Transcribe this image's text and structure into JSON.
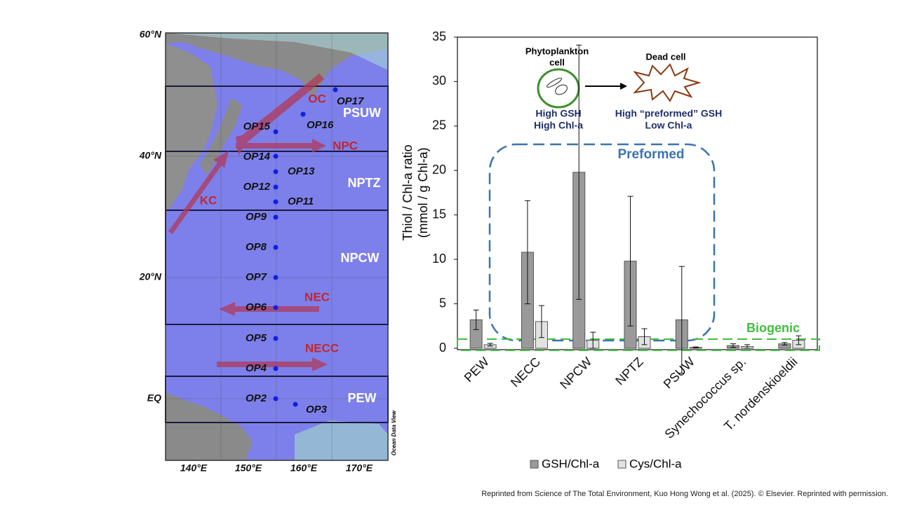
{
  "map": {
    "lat_labels": [
      "60°N",
      "40°N",
      "20°N",
      "EQ"
    ],
    "lon_labels": [
      "140°E",
      "150°E",
      "160°E",
      "170°E"
    ],
    "regions": [
      "PSUW",
      "NPTZ",
      "NPCW",
      "PEW"
    ],
    "currents": [
      "OC",
      "NPC",
      "KC",
      "NEC",
      "NECC"
    ],
    "stations": [
      "OP17",
      "OP16",
      "OP15",
      "OP14",
      "OP13",
      "OP12",
      "OP11",
      "OP9",
      "OP8",
      "OP7",
      "OP6",
      "OP5",
      "OP4",
      "OP2",
      "OP3"
    ],
    "credit": "Ocean Data View"
  },
  "chart_data": {
    "type": "bar",
    "ylabel": [
      "Thiol / Chl-a ratio",
      "(mmol / g Chl-a)"
    ],
    "categories": [
      "PEW",
      "NECC",
      "NPCW",
      "NPTZ",
      "PSUW",
      "Synechococcus sp.",
      "T. nordenskioeldii"
    ],
    "series": [
      {
        "name": "GSH/Chl-a",
        "color": "#9a9a9a",
        "values": [
          3.2,
          10.8,
          19.8,
          9.8,
          3.2,
          0.3,
          0.5
        ],
        "errors": [
          1.1,
          5.8,
          14.3,
          7.3,
          6.0,
          0.2,
          0.15
        ]
      },
      {
        "name": "Cys/Chl-a",
        "color": "#e2e2e2",
        "values": [
          0.4,
          3.0,
          0.9,
          1.3,
          0.1,
          0.2,
          0.9
        ],
        "errors": [
          0.15,
          1.8,
          0.9,
          0.9,
          0.05,
          0.2,
          0.5
        ]
      }
    ],
    "ylim": [
      0,
      35
    ],
    "yticks": [
      0,
      5,
      10,
      15,
      20,
      25,
      30,
      35
    ],
    "annotations": {
      "cell_label": [
        "Phytoplankton",
        "cell"
      ],
      "dead_cell": "Dead cell",
      "cell_state": [
        "High GSH",
        "High Chl-a"
      ],
      "dead_state": [
        "High “preformed” GSH",
        "Low Chl-a"
      ],
      "preformed": "Preformed",
      "biogenic": "Biogenic"
    }
  },
  "citation": "Reprinted from Science of The Total Environment, Kuo Hong Wong et al. (2025). © Elsevier. Reprinted with permission."
}
